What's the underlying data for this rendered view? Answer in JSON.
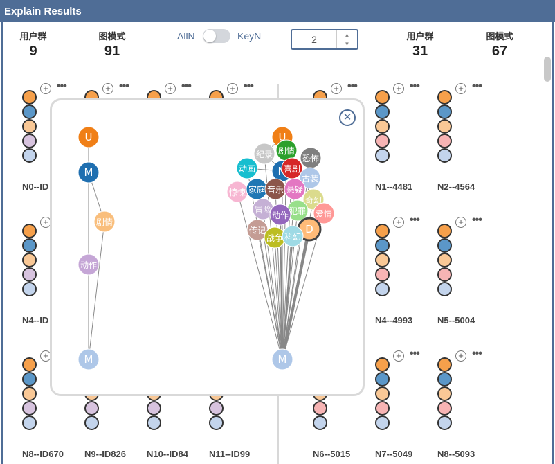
{
  "window": {
    "title": "Explain Results"
  },
  "left_stats": [
    {
      "label": "用户群",
      "value": "9"
    },
    {
      "label": "图模式",
      "value": "91"
    }
  ],
  "right_stats": [
    {
      "label": "用户群",
      "value": "31"
    },
    {
      "label": "图模式",
      "value": "67"
    }
  ],
  "toggle": {
    "left_label": "AllN",
    "right_label": "KeyN"
  },
  "stepper": {
    "value": "2"
  },
  "cards": [
    {
      "name": "N0--ID",
      "colors": [
        "#f6a04b",
        "#5b97c8",
        "#f9c896",
        "#d7c3de",
        "#c3d4ec"
      ]
    },
    {
      "name": "",
      "colors": [
        "#f6a04b",
        "#5b97c8",
        "#f9c896",
        "#d7c3de",
        "#c3d4ec"
      ]
    },
    {
      "name": "",
      "colors": [
        "#f6a04b",
        "#5b97c8",
        "#f9c896",
        "#d7c3de",
        "#c3d4ec"
      ]
    },
    {
      "name": "",
      "colors": [
        "#f6a04b",
        "#5b97c8",
        "#f9c896",
        "#d7c3de",
        "#c3d4ec"
      ]
    },
    {
      "name": "",
      "colors": [
        "#f6a04b",
        "#5b97c8",
        "#f9c896",
        "#f7b4b4",
        "#c3d4ec"
      ]
    },
    {
      "name": "N1--4481",
      "colors": [
        "#f6a04b",
        "#5b97c8",
        "#f9c896",
        "#f7b4b4",
        "#c3d4ec"
      ]
    },
    {
      "name": "N2--4564",
      "colors": [
        "#f6a04b",
        "#5b97c8",
        "#f9c896",
        "#f7b4b4",
        "#c3d4ec"
      ]
    },
    {
      "name": "N4--ID",
      "colors": [
        "#f6a04b",
        "#5b97c8",
        "#f9c896",
        "#d7c3de",
        "#c3d4ec"
      ]
    },
    {
      "name": "N4--4993",
      "colors": [
        "#f6a04b",
        "#5b97c8",
        "#f9c896",
        "#f7b4b4",
        "#c3d4ec"
      ]
    },
    {
      "name": "N5--5004",
      "colors": [
        "#f6a04b",
        "#5b97c8",
        "#f9c896",
        "#f7b4b4",
        "#c3d4ec"
      ]
    },
    {
      "name": "N8--ID670",
      "colors": [
        "#f6a04b",
        "#5b97c8",
        "#f9c896",
        "#d7c3de",
        "#c3d4ec"
      ]
    },
    {
      "name": "N9--ID826",
      "colors": [
        "#f6a04b",
        "#5b97c8",
        "#f9c896",
        "#d7c3de",
        "#c3d4ec"
      ]
    },
    {
      "name": "N10--ID84",
      "colors": [
        "#f6a04b",
        "#5b97c8",
        "#f9c896",
        "#d7c3de",
        "#c3d4ec"
      ]
    },
    {
      "name": "N11--ID99",
      "colors": [
        "#f6a04b",
        "#5b97c8",
        "#f9c896",
        "#d7c3de",
        "#c3d4ec"
      ]
    },
    {
      "name": "N6--5015",
      "colors": [
        "#f6a04b",
        "#5b97c8",
        "#f9c896",
        "#f7b4b4",
        "#c3d4ec"
      ]
    },
    {
      "name": "N7--5049",
      "colors": [
        "#f6a04b",
        "#5b97c8",
        "#f9c896",
        "#f7b4b4",
        "#c3d4ec"
      ]
    },
    {
      "name": "N8--5093",
      "colors": [
        "#f6a04b",
        "#5b97c8",
        "#f9c896",
        "#f7b4b4",
        "#c3d4ec"
      ]
    }
  ],
  "popup": {
    "close_icon": "close-icon",
    "left_graph": {
      "nodes": [
        {
          "label": "U",
          "color": "#f07f16"
        },
        {
          "label": "M",
          "color": "#1f6fb0"
        },
        {
          "label": "剧情",
          "color": "#f9be7c"
        },
        {
          "label": "动作",
          "color": "#c5a6d6"
        },
        {
          "label": "M",
          "color": "#aec7e8"
        }
      ]
    },
    "right_graph": {
      "nodes": [
        {
          "label": "U",
          "color": "#f07f16"
        },
        {
          "label": "剧情",
          "color": "#2ca02c"
        },
        {
          "label": "纪录",
          "color": "#c7c7c7"
        },
        {
          "label": "恐怖",
          "color": "#7f7f7f"
        },
        {
          "label": "动画",
          "color": "#17becf"
        },
        {
          "label": "M",
          "color": "#1f6fb0"
        },
        {
          "label": "喜剧",
          "color": "#d62728"
        },
        {
          "label": "古装",
          "color": "#aec7e8"
        },
        {
          "label": "惊悚",
          "color": "#f7b6d2"
        },
        {
          "label": "家庭",
          "color": "#1f77b4"
        },
        {
          "label": "音乐",
          "color": "#8c564b"
        },
        {
          "label": "悬疑",
          "color": "#e377c2"
        },
        {
          "label": "奇幻",
          "color": "#dbdb8d"
        },
        {
          "label": "冒险",
          "color": "#c5b0d5"
        },
        {
          "label": "犯罪",
          "color": "#98df8a"
        },
        {
          "label": "爱情",
          "color": "#ff9896"
        },
        {
          "label": "动作",
          "color": "#9467bd"
        },
        {
          "label": "D",
          "color": "#ffbb78"
        },
        {
          "label": "传记",
          "color": "#c49c94"
        },
        {
          "label": "战争",
          "color": "#bcbd22"
        },
        {
          "label": "科幻",
          "color": "#9edae5"
        },
        {
          "label": "M",
          "color": "#aec7e8"
        }
      ]
    }
  }
}
